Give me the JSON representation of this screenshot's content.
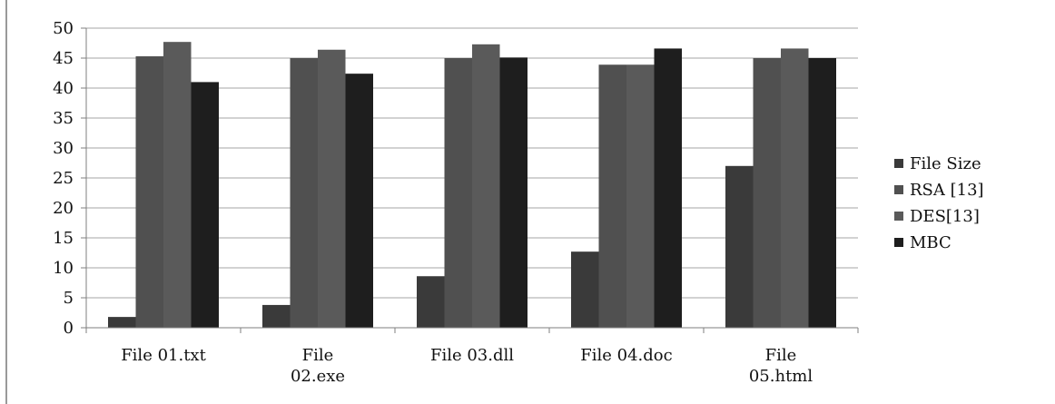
{
  "chart_data": {
    "type": "bar",
    "title": "",
    "xlabel": "",
    "ylabel": "",
    "categories": [
      "File 01.txt",
      "File 02.exe",
      "File 03.dll",
      "File 04.doc",
      "File 05.html"
    ],
    "category_lines": [
      [
        "File 01.txt"
      ],
      [
        "File",
        "02.exe"
      ],
      [
        "File 03.dll"
      ],
      [
        "File 04.doc"
      ],
      [
        "File",
        "05.html"
      ]
    ],
    "ylim": [
      0,
      50
    ],
    "yticks": [
      0,
      5,
      10,
      15,
      20,
      25,
      30,
      35,
      40,
      45,
      50
    ],
    "grid": true,
    "legend_position": "right",
    "series": [
      {
        "name": "File Size",
        "color": "#3a3a3a",
        "values": [
          1.8,
          3.8,
          8.6,
          12.7,
          27.0
        ]
      },
      {
        "name": "RSA [13]",
        "color": "#505050",
        "values": [
          45.3,
          45.0,
          45.0,
          43.9,
          45.0
        ]
      },
      {
        "name": "DES[13]",
        "color": "#5a5a5a",
        "values": [
          47.7,
          46.4,
          47.3,
          43.9,
          46.6
        ]
      },
      {
        "name": "MBC",
        "color": "#1e1e1e",
        "values": [
          41.0,
          42.4,
          45.1,
          46.6,
          45.0
        ]
      }
    ]
  }
}
